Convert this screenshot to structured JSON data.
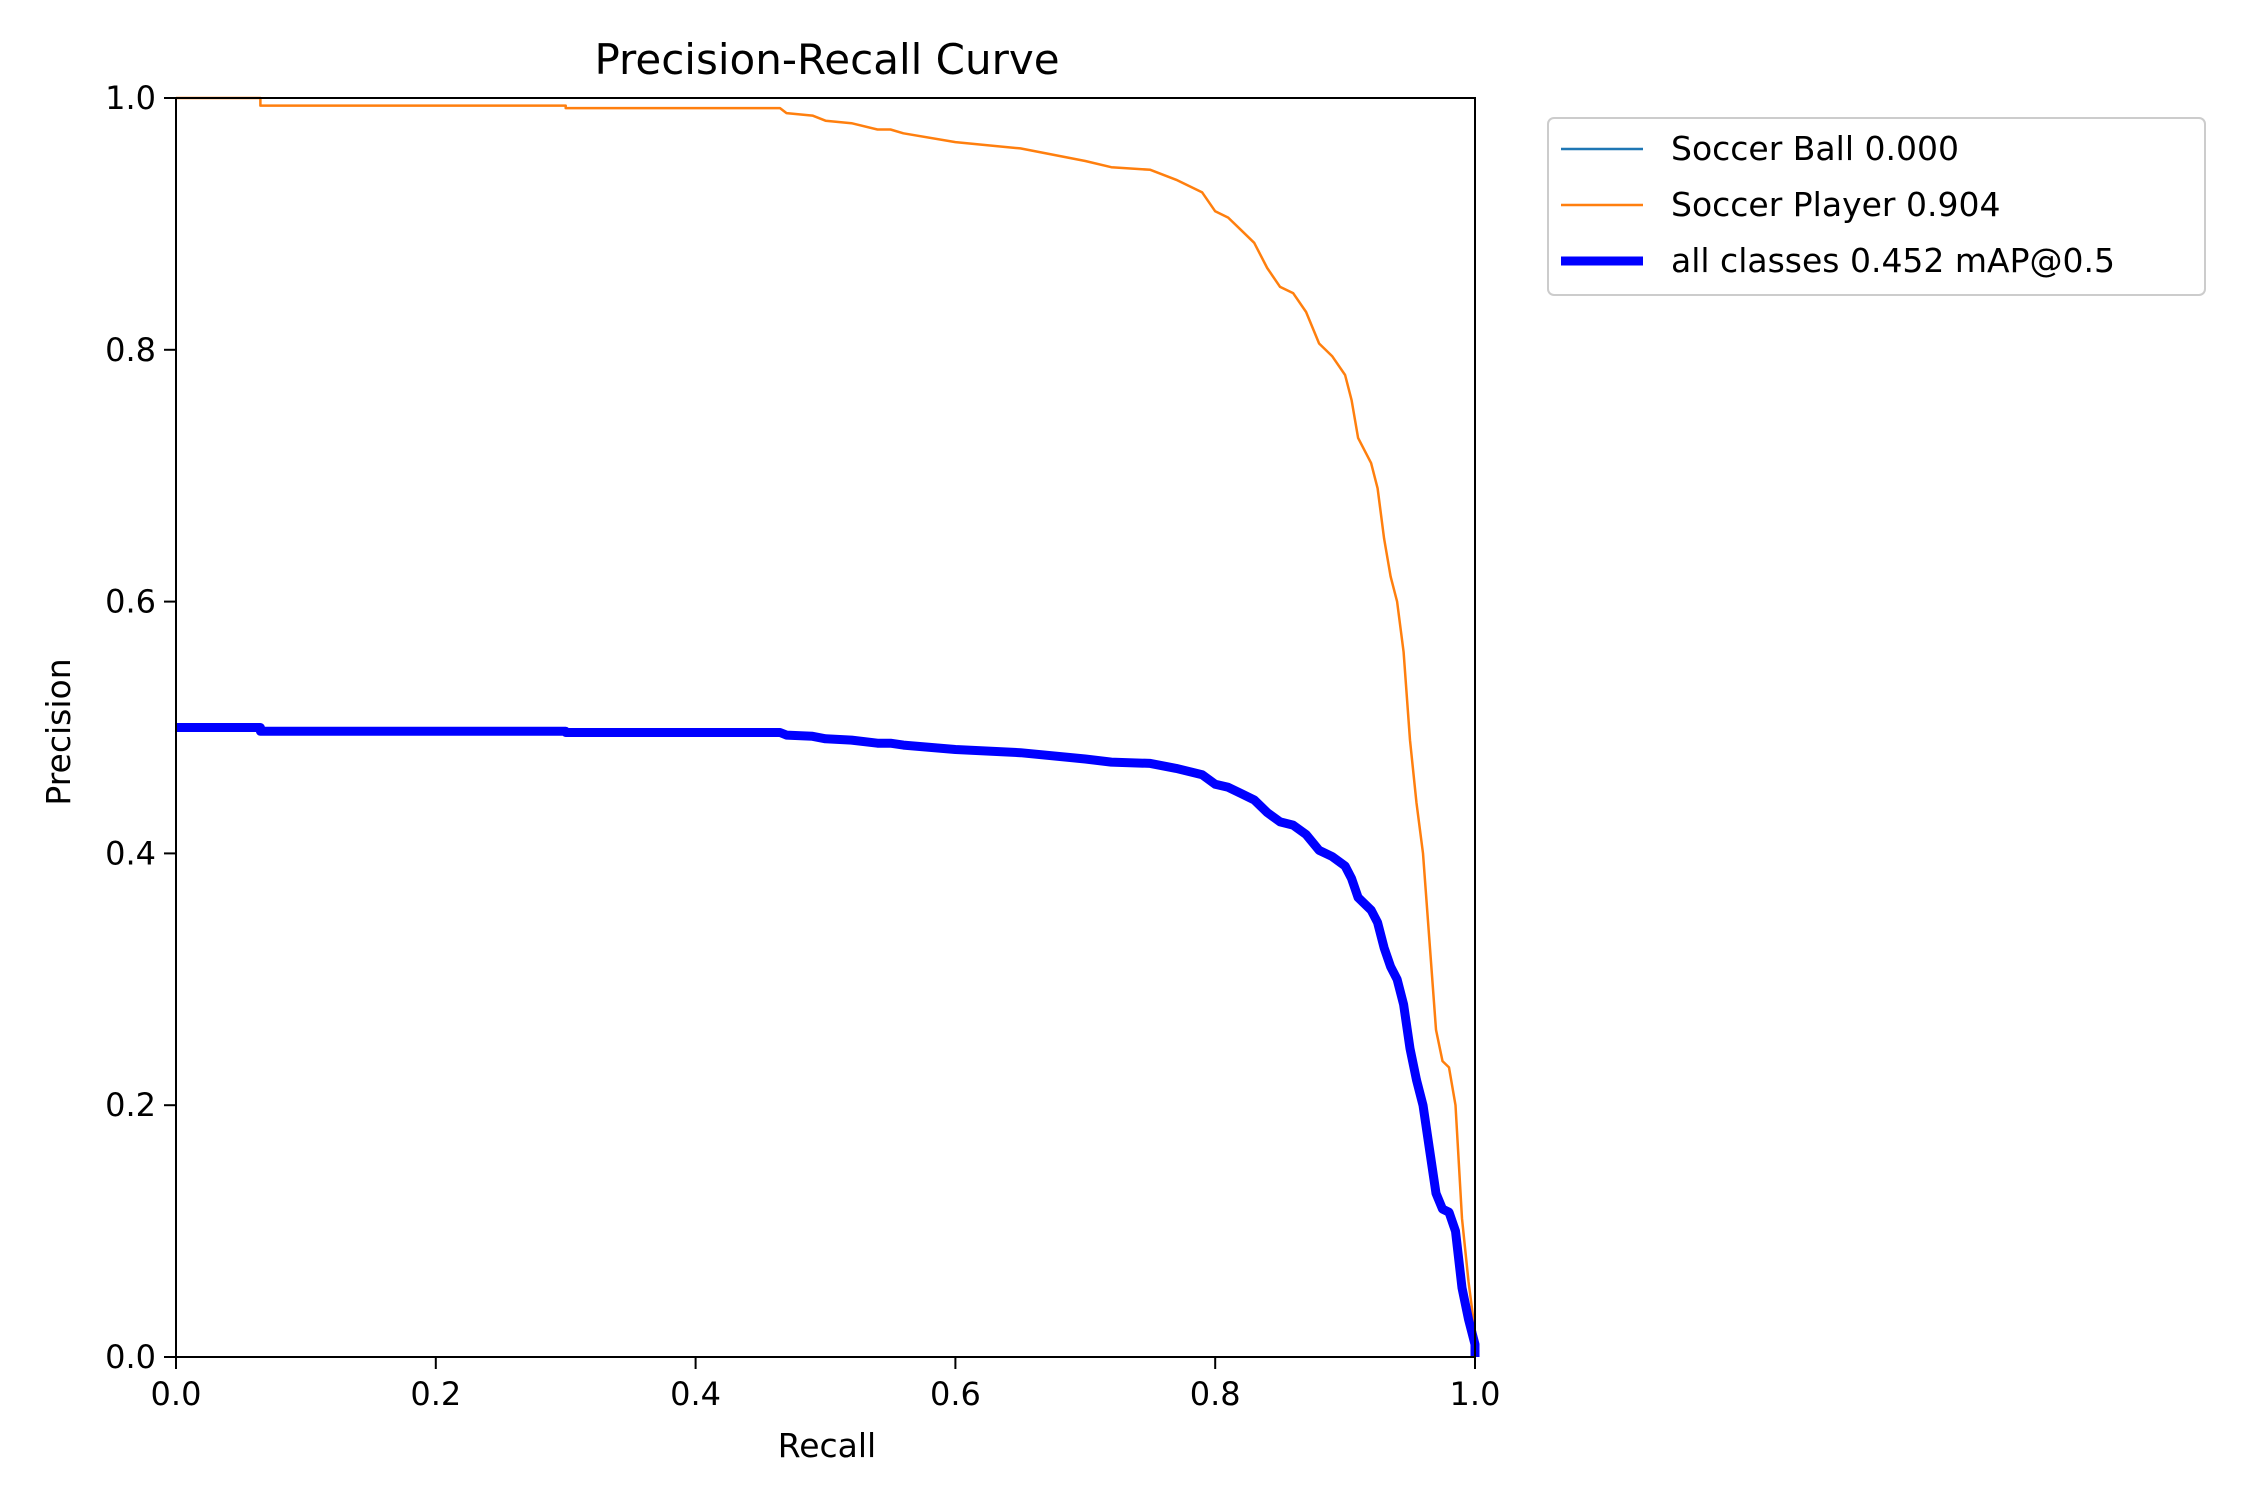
{
  "chart_data": {
    "type": "line",
    "title": "Precision-Recall Curve",
    "xlabel": "Recall",
    "ylabel": "Precision",
    "xlim": [
      0,
      1
    ],
    "ylim": [
      0,
      1
    ],
    "xticks": [
      "0.0",
      "0.2",
      "0.4",
      "0.6",
      "0.8",
      "1.0"
    ],
    "yticks": [
      "0.0",
      "0.2",
      "0.4",
      "0.6",
      "0.8",
      "1.0"
    ],
    "grid": false,
    "legend_position": "outside-upper-right",
    "series": [
      {
        "name": "Soccer Ball 0.000",
        "color": "#1f77b4",
        "points": []
      },
      {
        "name": "Soccer Player 0.904",
        "color": "#ff7f0e",
        "points": [
          [
            0.0,
            1.0
          ],
          [
            0.065,
            1.0
          ],
          [
            0.065,
            0.994
          ],
          [
            0.3,
            0.994
          ],
          [
            0.3,
            0.992
          ],
          [
            0.465,
            0.992
          ],
          [
            0.47,
            0.988
          ],
          [
            0.49,
            0.986
          ],
          [
            0.5,
            0.982
          ],
          [
            0.52,
            0.98
          ],
          [
            0.54,
            0.975
          ],
          [
            0.55,
            0.975
          ],
          [
            0.56,
            0.972
          ],
          [
            0.6,
            0.965
          ],
          [
            0.65,
            0.96
          ],
          [
            0.7,
            0.95
          ],
          [
            0.72,
            0.945
          ],
          [
            0.75,
            0.943
          ],
          [
            0.77,
            0.935
          ],
          [
            0.79,
            0.925
          ],
          [
            0.8,
            0.91
          ],
          [
            0.81,
            0.905
          ],
          [
            0.82,
            0.895
          ],
          [
            0.83,
            0.885
          ],
          [
            0.84,
            0.865
          ],
          [
            0.85,
            0.85
          ],
          [
            0.86,
            0.845
          ],
          [
            0.87,
            0.83
          ],
          [
            0.88,
            0.805
          ],
          [
            0.89,
            0.795
          ],
          [
            0.9,
            0.78
          ],
          [
            0.905,
            0.76
          ],
          [
            0.91,
            0.73
          ],
          [
            0.92,
            0.71
          ],
          [
            0.925,
            0.69
          ],
          [
            0.93,
            0.65
          ],
          [
            0.935,
            0.62
          ],
          [
            0.94,
            0.6
          ],
          [
            0.945,
            0.56
          ],
          [
            0.95,
            0.49
          ],
          [
            0.955,
            0.44
          ],
          [
            0.96,
            0.4
          ],
          [
            0.965,
            0.33
          ],
          [
            0.97,
            0.26
          ],
          [
            0.975,
            0.235
          ],
          [
            0.98,
            0.23
          ],
          [
            0.985,
            0.2
          ],
          [
            0.99,
            0.11
          ],
          [
            0.995,
            0.06
          ],
          [
            1.0,
            0.02
          ],
          [
            1.0,
            0.0
          ]
        ]
      },
      {
        "name": "all classes 0.452 mAP@0.5",
        "color": "#0000ff",
        "points": [
          [
            0.0,
            0.5
          ],
          [
            0.065,
            0.5
          ],
          [
            0.065,
            0.497
          ],
          [
            0.3,
            0.497
          ],
          [
            0.3,
            0.496
          ],
          [
            0.465,
            0.496
          ],
          [
            0.47,
            0.494
          ],
          [
            0.49,
            0.493
          ],
          [
            0.5,
            0.491
          ],
          [
            0.52,
            0.49
          ],
          [
            0.54,
            0.4875
          ],
          [
            0.55,
            0.4875
          ],
          [
            0.56,
            0.486
          ],
          [
            0.6,
            0.4825
          ],
          [
            0.65,
            0.48
          ],
          [
            0.7,
            0.475
          ],
          [
            0.72,
            0.4725
          ],
          [
            0.75,
            0.4715
          ],
          [
            0.77,
            0.4675
          ],
          [
            0.79,
            0.4625
          ],
          [
            0.8,
            0.455
          ],
          [
            0.81,
            0.4525
          ],
          [
            0.82,
            0.4475
          ],
          [
            0.83,
            0.4425
          ],
          [
            0.84,
            0.4325
          ],
          [
            0.85,
            0.425
          ],
          [
            0.86,
            0.4225
          ],
          [
            0.87,
            0.415
          ],
          [
            0.88,
            0.4025
          ],
          [
            0.89,
            0.3975
          ],
          [
            0.9,
            0.39
          ],
          [
            0.905,
            0.38
          ],
          [
            0.91,
            0.365
          ],
          [
            0.92,
            0.355
          ],
          [
            0.925,
            0.345
          ],
          [
            0.93,
            0.325
          ],
          [
            0.935,
            0.31
          ],
          [
            0.94,
            0.3
          ],
          [
            0.945,
            0.28
          ],
          [
            0.95,
            0.245
          ],
          [
            0.955,
            0.22
          ],
          [
            0.96,
            0.2
          ],
          [
            0.965,
            0.165
          ],
          [
            0.97,
            0.13
          ],
          [
            0.975,
            0.1175
          ],
          [
            0.98,
            0.115
          ],
          [
            0.985,
            0.1
          ],
          [
            0.99,
            0.055
          ],
          [
            0.995,
            0.03
          ],
          [
            1.0,
            0.01
          ],
          [
            1.0,
            0.0
          ]
        ]
      }
    ]
  }
}
